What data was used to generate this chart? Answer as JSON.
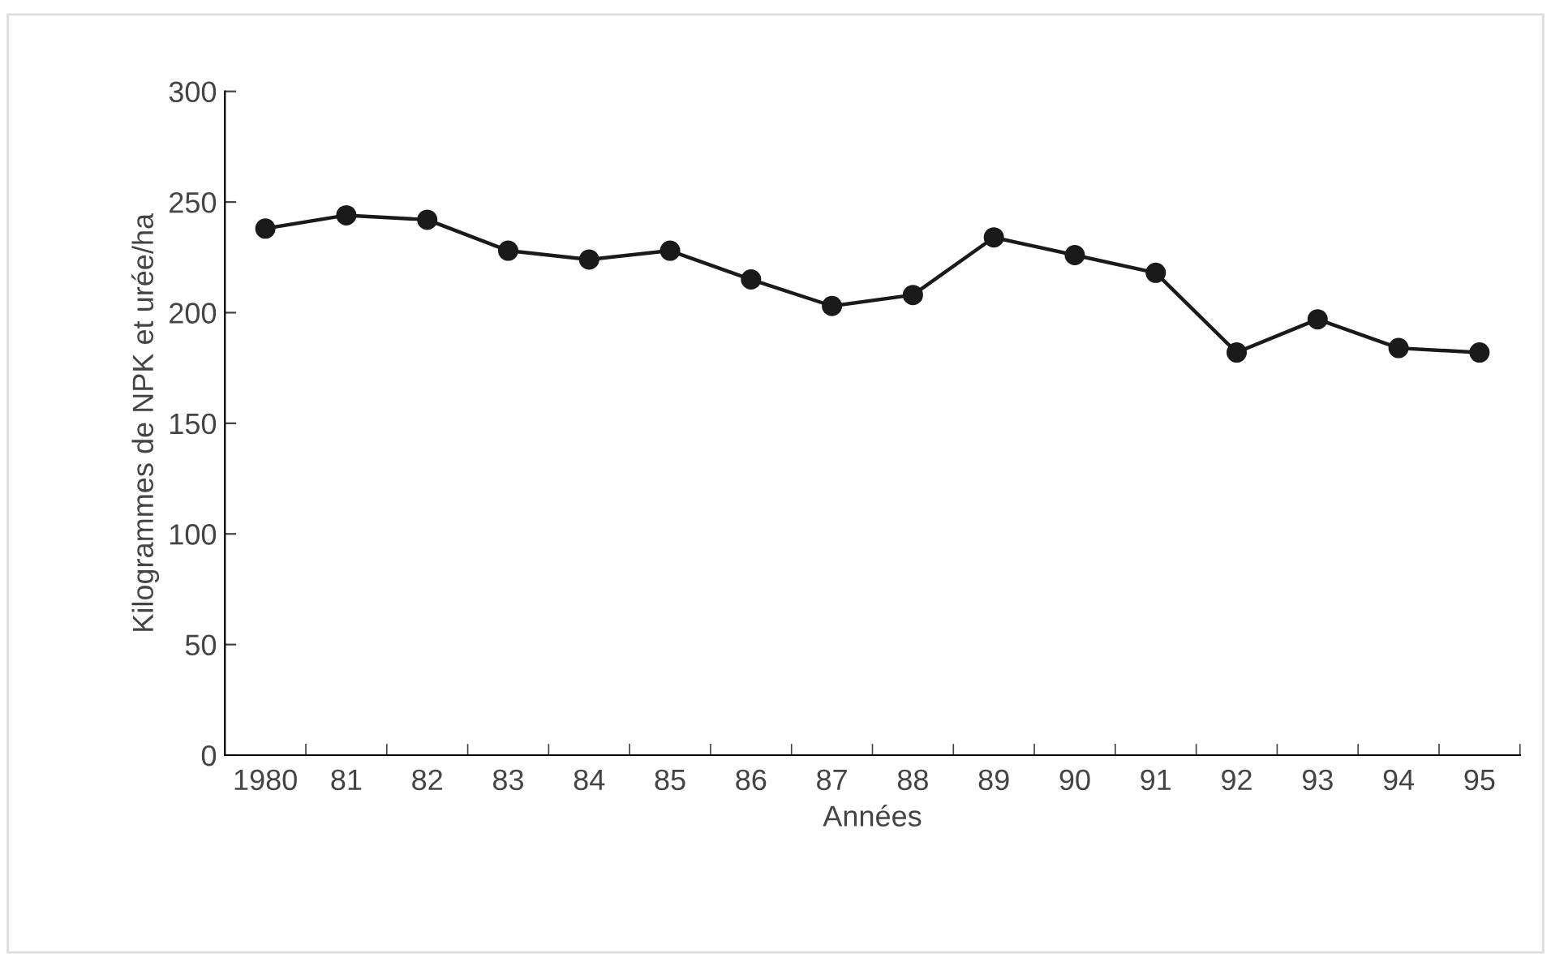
{
  "chart_data": {
    "type": "line",
    "xlabel": "Années",
    "ylabel": "Kilogrammes de NPK et urée/ha",
    "categories": [
      "1980",
      "81",
      "82",
      "83",
      "84",
      "85",
      "86",
      "87",
      "88",
      "89",
      "90",
      "91",
      "92",
      "93",
      "94",
      "95"
    ],
    "series": [
      {
        "color": "#1a1a1a",
        "values": [
          238,
          244,
          242,
          228,
          224,
          228,
          215,
          203,
          208,
          234,
          226,
          218,
          182,
          197,
          184,
          182
        ]
      }
    ],
    "ylim": [
      0,
      300
    ],
    "yticks": [
      0,
      50,
      100,
      150,
      200,
      250,
      300
    ],
    "grid": false,
    "legend": false,
    "marker": "circle",
    "line_style": "solid"
  }
}
